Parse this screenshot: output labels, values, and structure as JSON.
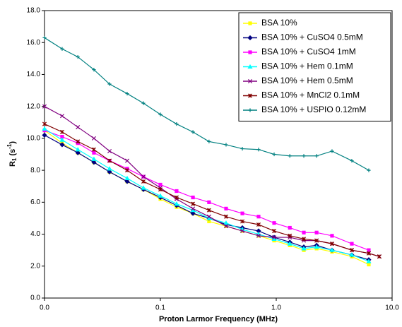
{
  "chart_data": {
    "type": "line",
    "xlabel": "Proton Larmor Frequency (MHz)",
    "ylabel": [
      "R",
      "1",
      " (s",
      "-1",
      ")"
    ],
    "xscale": "log",
    "xlim": [
      0.01,
      10
    ],
    "xticks": [
      {
        "value": 0.01,
        "label": "0.0"
      },
      {
        "value": 0.1,
        "label": "0.1"
      },
      {
        "value": 1,
        "label": "1.0"
      },
      {
        "value": 10,
        "label": "10.0"
      }
    ],
    "ylim": [
      0,
      18
    ],
    "yticks": [
      {
        "value": 0,
        "label": "0.0"
      },
      {
        "value": 2,
        "label": "2.0"
      },
      {
        "value": 4,
        "label": "4.0"
      },
      {
        "value": 6,
        "label": "6.0"
      },
      {
        "value": 8,
        "label": "8.0"
      },
      {
        "value": 10,
        "label": "10.0"
      },
      {
        "value": 12,
        "label": "12.0"
      },
      {
        "value": 14,
        "label": "14.0"
      },
      {
        "value": 16,
        "label": "16.0"
      },
      {
        "value": 18,
        "label": "18.0"
      }
    ],
    "grid": false,
    "legend": "upper right",
    "x": [
      0.01,
      0.0142,
      0.0194,
      0.0267,
      0.0364,
      0.0517,
      0.0714,
      0.1,
      0.138,
      0.191,
      0.263,
      0.369,
      0.51,
      0.704,
      0.959,
      1.31,
      1.73,
      2.23,
      3.03,
      4.49,
      6.29,
      7.76
    ],
    "series": [
      {
        "name": "BSA 10%",
        "color": "#ffff00",
        "marker": "square",
        "values": [
          10.5,
          9.7,
          9.1,
          8.5,
          7.9,
          7.3,
          6.8,
          6.2,
          5.7,
          5.3,
          4.8,
          4.5,
          4.2,
          3.9,
          3.6,
          3.3,
          3.0,
          3.1,
          2.9,
          2.6,
          2.1,
          null
        ]
      },
      {
        "name": "BSA 10% + CuSO4 0.5mM",
        "color": "#000080",
        "marker": "diamond",
        "values": [
          10.2,
          9.6,
          9.1,
          8.5,
          7.9,
          7.3,
          6.8,
          6.3,
          5.8,
          5.3,
          5.0,
          4.6,
          4.4,
          4.2,
          3.8,
          3.5,
          3.2,
          3.3,
          3.0,
          2.7,
          2.4,
          null
        ]
      },
      {
        "name": "BSA 10% + CuSO4 1mM",
        "color": "#ff00ff",
        "marker": "square",
        "values": [
          10.5,
          10.1,
          9.7,
          9.1,
          8.6,
          8.1,
          7.6,
          7.1,
          6.7,
          6.3,
          6.0,
          5.6,
          5.3,
          5.1,
          4.7,
          4.4,
          4.1,
          4.1,
          3.9,
          3.4,
          3.0,
          null
        ]
      },
      {
        "name": "BSA 10% + Hem 0.1mM",
        "color": "#00ffff",
        "marker": "triangle",
        "values": [
          10.6,
          9.9,
          9.3,
          8.7,
          8.1,
          7.5,
          6.9,
          6.4,
          5.9,
          5.5,
          5.0,
          4.7,
          4.3,
          4.0,
          3.7,
          3.4,
          3.1,
          3.2,
          3.0,
          2.7,
          2.3,
          null
        ]
      },
      {
        "name": "BSA 10% + Hem 0.5mM",
        "color": "#800080",
        "marker": "x",
        "values": [
          12.0,
          11.4,
          10.7,
          10.0,
          9.2,
          8.6,
          7.6,
          6.9,
          6.2,
          5.6,
          5.1,
          4.5,
          4.2,
          3.9,
          3.8,
          3.8,
          3.6,
          3.6,
          3.4,
          3.0,
          2.8,
          2.6
        ]
      },
      {
        "name": "BSA 10% + MnCl2 0.1mM",
        "color": "#800000",
        "marker": "star",
        "values": [
          10.9,
          10.4,
          9.8,
          9.3,
          8.6,
          8.0,
          7.3,
          6.8,
          6.3,
          5.9,
          5.5,
          5.1,
          4.8,
          4.6,
          4.2,
          3.9,
          3.7,
          3.6,
          3.4,
          3.0,
          2.8,
          2.6
        ]
      },
      {
        "name": "BSA 10% + USPIO 0.12mM",
        "color": "#008080",
        "marker": "plus",
        "values": [
          16.3,
          15.6,
          15.1,
          14.3,
          13.4,
          12.8,
          12.2,
          11.5,
          10.9,
          10.4,
          9.8,
          9.6,
          9.35,
          9.3,
          9.0,
          8.9,
          8.9,
          8.9,
          9.2,
          8.6,
          8.0,
          null
        ]
      }
    ]
  }
}
